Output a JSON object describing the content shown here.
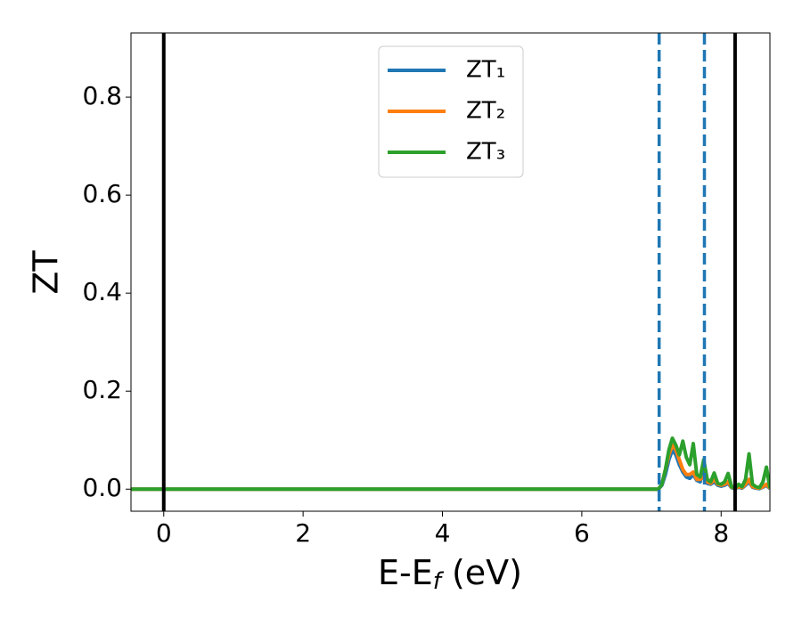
{
  "chart_data": {
    "type": "line",
    "xlabel": [
      "E-E",
      "f",
      " (eV)"
    ],
    "ylabel": "ZT",
    "x": [
      -0.47,
      7.1,
      7.15,
      7.2,
      7.25,
      7.3,
      7.35,
      7.4,
      7.45,
      7.5,
      7.55,
      7.6,
      7.65,
      7.7,
      7.75,
      7.8,
      7.85,
      7.9,
      7.95,
      8.0,
      8.05,
      8.1,
      8.15,
      8.2,
      8.25,
      8.3,
      8.35,
      8.4,
      8.45,
      8.5,
      8.55,
      8.6,
      8.65,
      8.7
    ],
    "series": [
      {
        "name": "ZT₁",
        "color": "#1f77b4",
        "values": [
          0,
          0,
          0.008,
          0.03,
          0.06,
          0.08,
          0.07,
          0.05,
          0.035,
          0.025,
          0.022,
          0.03,
          0.018,
          0.015,
          0.055,
          0.012,
          0.01,
          0.015,
          0.008,
          0.006,
          0.008,
          0.012,
          0.003,
          0.001,
          0.004,
          0.002,
          0.008,
          0.015,
          0.004,
          0.002,
          0.001,
          0.004,
          0.008,
          0.001
        ]
      },
      {
        "name": "ZT₂",
        "color": "#ff7f0e",
        "values": [
          0,
          0,
          0.01,
          0.04,
          0.07,
          0.09,
          0.08,
          0.06,
          0.04,
          0.03,
          0.03,
          0.035,
          0.02,
          0.02,
          0.025,
          0.015,
          0.012,
          0.02,
          0.01,
          0.008,
          0.01,
          0.015,
          0.004,
          0.002,
          0.005,
          0.003,
          0.01,
          0.02,
          0.005,
          0.003,
          0.002,
          0.005,
          0.01,
          0.002
        ]
      },
      {
        "name": "ZT₃",
        "color": "#2ca02c",
        "values": [
          0,
          0,
          0.01,
          0.04,
          0.08,
          0.104,
          0.09,
          0.07,
          0.098,
          0.065,
          0.05,
          0.093,
          0.03,
          0.025,
          0.06,
          0.02,
          0.015,
          0.033,
          0.012,
          0.01,
          0.015,
          0.032,
          0.005,
          0.002,
          0.01,
          0.005,
          0.02,
          0.072,
          0.01,
          0.005,
          0.003,
          0.015,
          0.045,
          0.002
        ]
      }
    ],
    "vlines": [
      {
        "x": 0,
        "color": "#000000",
        "style": "solid"
      },
      {
        "x": 8.2,
        "color": "#000000",
        "style": "solid"
      },
      {
        "x": 7.11,
        "color": "#1f77b4",
        "style": "dashed"
      },
      {
        "x": 7.76,
        "color": "#1f77b4",
        "style": "dashed"
      }
    ],
    "xlim": [
      -0.47,
      8.7
    ],
    "xticks": [
      0,
      2,
      4,
      6,
      8
    ],
    "ylim": [
      -0.045,
      0.931
    ],
    "yticks": [
      0.0,
      0.2,
      0.4,
      0.6,
      0.8
    ],
    "legend": "upper center"
  }
}
